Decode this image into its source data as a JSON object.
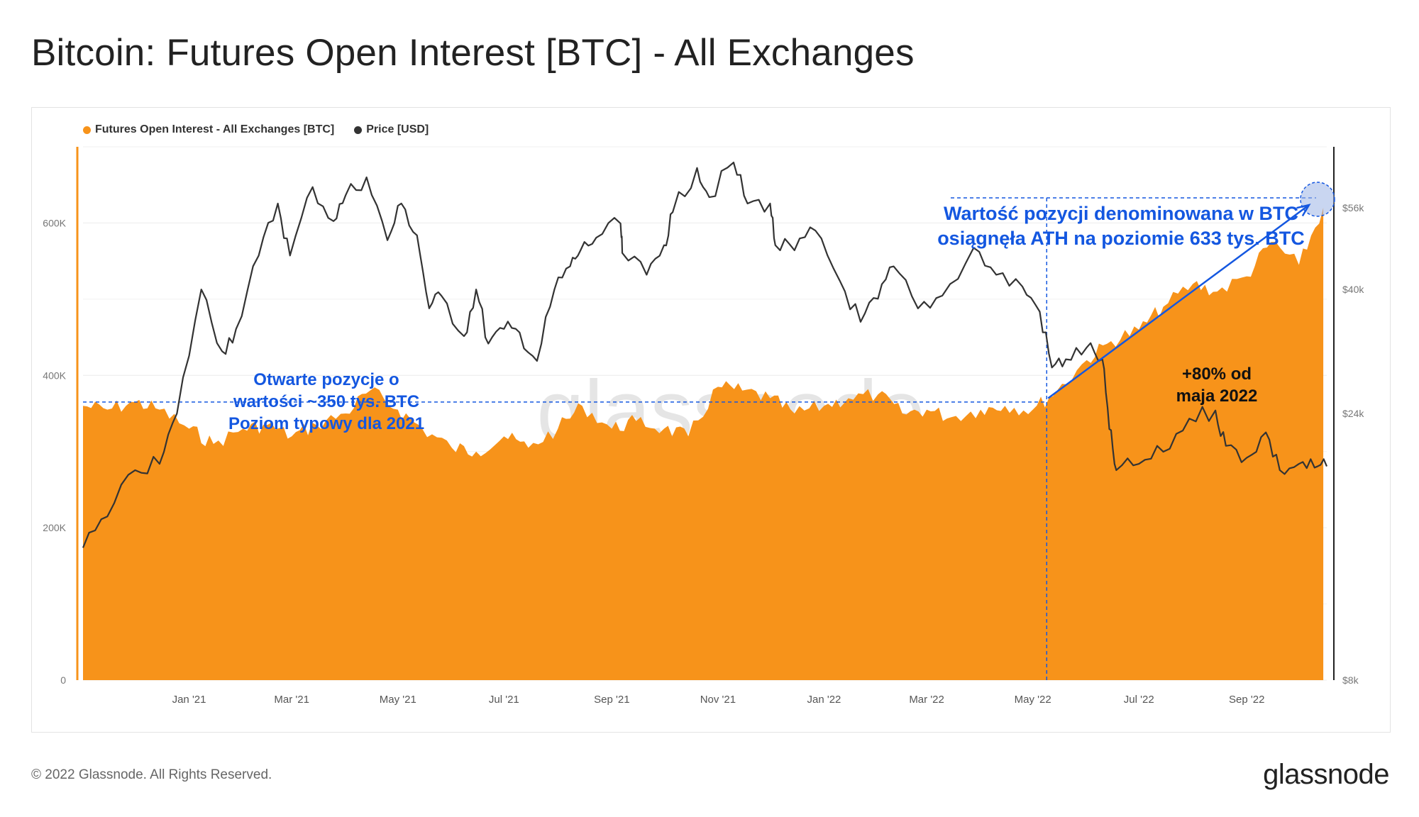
{
  "page": {
    "title": "Bitcoin: Futures Open Interest [BTC] - All Exchanges",
    "footer": "© 2022 Glassnode. All Rights Reserved.",
    "logo": "glassnode",
    "watermark": "glassnode"
  },
  "legend": [
    {
      "label": "Futures Open Interest - All Exchanges [BTC]",
      "color": "#f7931a"
    },
    {
      "label": "Price [USD]",
      "color": "#333333"
    }
  ],
  "annotations": {
    "left": [
      "Otwarte pozycje o",
      "wartości ~350 tys. BTC",
      "Poziom typowy dla 2021"
    ],
    "right_top": [
      "Wartość pozycji denominowana w BTC",
      "osiągnęła ATH na poziomie 633 tys. BTC"
    ],
    "growth": [
      "+80% od",
      "maja 2022"
    ]
  },
  "chart_data": {
    "type": "area",
    "title": "Bitcoin: Futures Open Interest [BTC] - All Exchanges",
    "x_ticks": [
      "Jan '21",
      "Mar '21",
      "May '21",
      "Jul '21",
      "Sep '21",
      "Nov '21",
      "Jan '22",
      "Mar '22",
      "May '22",
      "Jul '22",
      "Sep '22"
    ],
    "y_left": {
      "ticks": [
        "0",
        "200K",
        "400K",
        "600K"
      ],
      "range": [
        0,
        700000
      ],
      "label": ""
    },
    "y_right": {
      "ticks": [
        "$8k",
        "$24k",
        "$40k",
        "$56k"
      ],
      "range": [
        8000,
        72000
      ],
      "label": "",
      "scale": "log"
    },
    "x_range": [
      "2020-11-01",
      "2022-10-17"
    ],
    "series": [
      {
        "name": "Futures Open Interest - All Exchanges [BTC]",
        "type": "area",
        "color": "#f7931a",
        "axis": "left",
        "x": [
          "2020-11-01",
          "2020-11-15",
          "2020-12-01",
          "2020-12-15",
          "2021-01-01",
          "2021-01-15",
          "2021-02-01",
          "2021-02-15",
          "2021-03-01",
          "2021-03-15",
          "2021-04-01",
          "2021-04-15",
          "2021-05-01",
          "2021-05-15",
          "2021-06-01",
          "2021-06-15",
          "2021-07-01",
          "2021-07-15",
          "2021-08-01",
          "2021-08-15",
          "2021-09-01",
          "2021-09-15",
          "2021-10-01",
          "2021-10-15",
          "2021-11-01",
          "2021-11-15",
          "2021-12-01",
          "2021-12-15",
          "2022-01-01",
          "2022-01-15",
          "2022-02-01",
          "2022-02-15",
          "2022-03-01",
          "2022-03-15",
          "2022-04-01",
          "2022-04-15",
          "2022-05-01",
          "2022-05-15",
          "2022-06-01",
          "2022-06-15",
          "2022-07-01",
          "2022-07-15",
          "2022-08-01",
          "2022-08-15",
          "2022-09-01",
          "2022-09-15",
          "2022-10-01",
          "2022-10-15"
        ],
        "y": [
          360000,
          355000,
          365000,
          355000,
          330000,
          310000,
          330000,
          335000,
          320000,
          335000,
          350000,
          380000,
          355000,
          330000,
          305000,
          300000,
          320000,
          305000,
          330000,
          360000,
          330000,
          340000,
          330000,
          320000,
          385000,
          380000,
          370000,
          350000,
          360000,
          370000,
          375000,
          350000,
          355000,
          345000,
          355000,
          360000,
          355000,
          380000,
          420000,
          445000,
          460000,
          490000,
          520000,
          510000,
          530000,
          575000,
          545000,
          620000
        ]
      },
      {
        "name": "Price [USD]",
        "type": "line",
        "color": "#333333",
        "axis": "right",
        "x": [
          "2020-11-01",
          "2020-11-15",
          "2020-12-01",
          "2020-12-15",
          "2020-12-25",
          "2021-01-08",
          "2021-01-20",
          "2021-01-28",
          "2021-02-10",
          "2021-02-21",
          "2021-02-28",
          "2021-03-13",
          "2021-03-25",
          "2021-04-01",
          "2021-04-13",
          "2021-04-25",
          "2021-05-03",
          "2021-05-12",
          "2021-05-19",
          "2021-05-26",
          "2021-06-08",
          "2021-06-15",
          "2021-06-22",
          "2021-07-01",
          "2021-07-10",
          "2021-07-20",
          "2021-07-30",
          "2021-08-08",
          "2021-08-14",
          "2021-08-23",
          "2021-09-06",
          "2021-09-07",
          "2021-09-21",
          "2021-10-01",
          "2021-10-06",
          "2021-10-20",
          "2021-10-27",
          "2021-11-10",
          "2021-11-18",
          "2021-12-01",
          "2021-12-04",
          "2021-12-15",
          "2021-12-27",
          "2022-01-10",
          "2022-01-22",
          "2022-02-01",
          "2022-02-10",
          "2022-02-24",
          "2022-03-10",
          "2022-03-28",
          "2022-04-10",
          "2022-04-25",
          "2022-05-05",
          "2022-05-12",
          "2022-05-20",
          "2022-06-01",
          "2022-06-10",
          "2022-06-14",
          "2022-06-18",
          "2022-07-01",
          "2022-07-15",
          "2022-07-30",
          "2022-08-14",
          "2022-08-20",
          "2022-09-01",
          "2022-09-12",
          "2022-09-20",
          "2022-10-01",
          "2022-10-10",
          "2022-10-17"
        ],
        "y": [
          13800,
          15700,
          19000,
          19500,
          24000,
          40000,
          31000,
          34000,
          46000,
          57000,
          46000,
          61000,
          53000,
          59000,
          63500,
          49000,
          57000,
          50000,
          37000,
          39000,
          33000,
          40000,
          32000,
          34000,
          33500,
          29800,
          40000,
          44000,
          47000,
          49500,
          52500,
          46500,
          42500,
          48000,
          55000,
          66000,
          58500,
          67500,
          57000,
          57000,
          48000,
          47000,
          51000,
          41500,
          35000,
          38500,
          44000,
          37000,
          39000,
          47500,
          42500,
          40500,
          36500,
          29000,
          30000,
          31500,
          30000,
          22500,
          19000,
          19500,
          20500,
          23500,
          24300,
          21000,
          20000,
          22200,
          19000,
          19500,
          19200,
          19300
        ]
      }
    ],
    "reference_line": {
      "axis": "left",
      "value": 365000
    },
    "ath_line": {
      "axis": "left",
      "value": 633000
    },
    "marker_date": "2022-05-09",
    "legend_position": "top-left",
    "grid": true
  }
}
